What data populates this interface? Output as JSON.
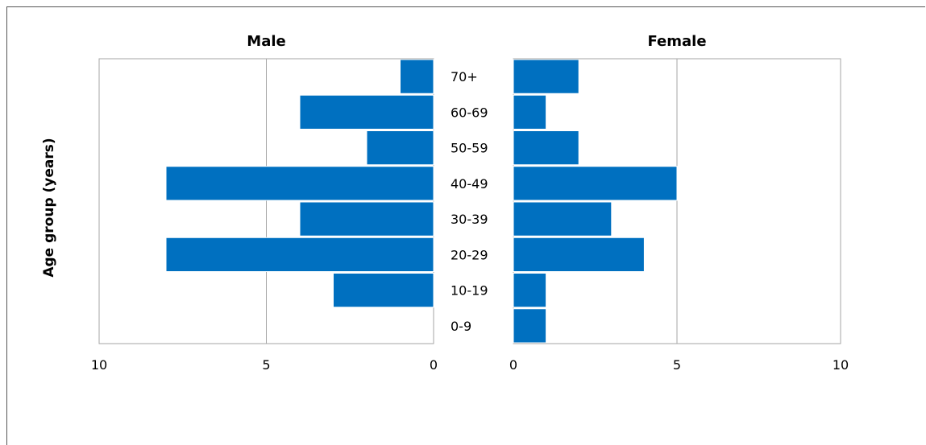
{
  "chart_data": [
    {
      "type": "bar",
      "title": "Male",
      "orientation": "horizontal",
      "direction": "reversed",
      "categories": [
        "0-9",
        "10-19",
        "20-29",
        "30-39",
        "40-49",
        "50-59",
        "60-69",
        "70+"
      ],
      "values": [
        0,
        3,
        8,
        4,
        8,
        2,
        4,
        1
      ],
      "xlim": [
        0,
        10
      ],
      "xticks": [
        "10",
        "5",
        "0"
      ],
      "ylabel": "Age group (years)",
      "grid": true,
      "color": "#0070C0"
    },
    {
      "type": "bar",
      "title": "Female",
      "orientation": "horizontal",
      "categories": [
        "0-9",
        "10-19",
        "20-29",
        "30-39",
        "40-49",
        "50-59",
        "60-69",
        "70+"
      ],
      "values": [
        1,
        1,
        4,
        3,
        5,
        2,
        1,
        2
      ],
      "xlim": [
        0,
        10
      ],
      "xticks": [
        "0",
        "5",
        "10"
      ],
      "grid": true,
      "color": "#0070C0"
    }
  ]
}
